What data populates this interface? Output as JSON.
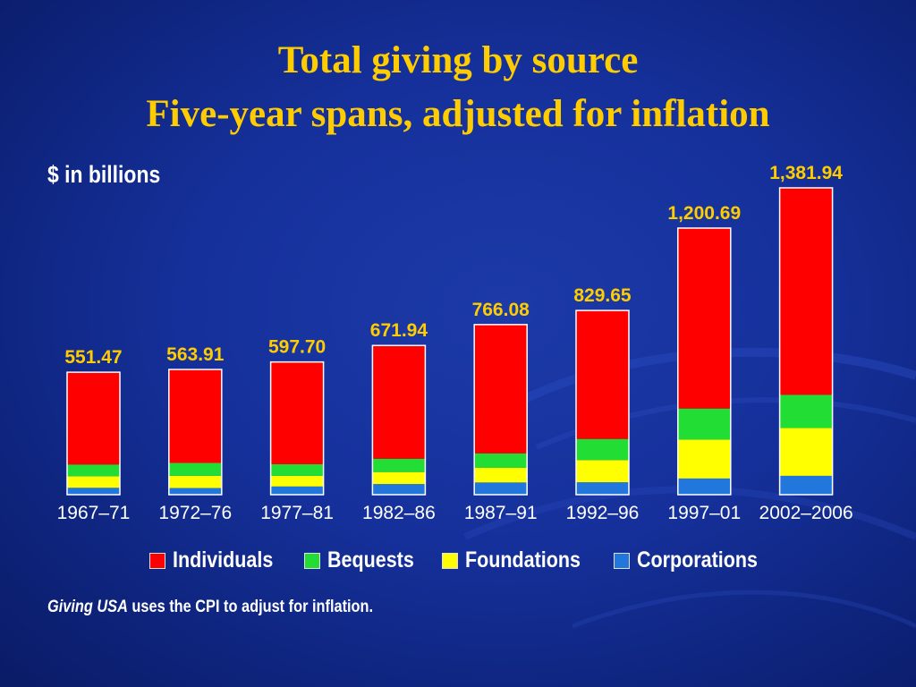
{
  "title": {
    "line1": "Total giving by source",
    "line2": "Five-year spans, adjusted for inflation"
  },
  "unit_label": "$ in billions",
  "footnote": {
    "source_italic": "Giving USA",
    "text": " uses the CPI to adjust for inflation."
  },
  "colors": {
    "background": "#15309a",
    "title": "#ffcc00",
    "total_label": "#ffcc00",
    "Individuals": "#ff0000",
    "Bequests": "#22dd33",
    "Foundations": "#ffff00",
    "Corporations": "#2277dd"
  },
  "chart_data": {
    "type": "bar",
    "stacked": true,
    "categories": [
      "1967–71",
      "1972–76",
      "1977–81",
      "1982–86",
      "1987–91",
      "1992–96",
      "1997–01",
      "2002–2006"
    ],
    "totals": [
      "551.47",
      "563.91",
      "597.70",
      "671.94",
      "766.08",
      "829.65",
      "1,200.69",
      "1,381.94"
    ],
    "series": [
      {
        "name": "Corporations",
        "values": [
          31,
          30,
          37,
          48,
          55,
          56,
          73,
          85
        ]
      },
      {
        "name": "Foundations",
        "values": [
          52,
          55,
          48,
          54,
          66,
          100,
          175,
          215
        ]
      },
      {
        "name": "Bequests",
        "values": [
          53,
          58,
          52,
          60,
          65,
          95,
          140,
          150
        ]
      },
      {
        "name": "Individuals",
        "values": [
          415.47,
          420.91,
          460.7,
          509.94,
          580.08,
          578.65,
          812.69,
          931.94
        ]
      }
    ],
    "legend": [
      "Individuals",
      "Bequests",
      "Foundations",
      "Corporations"
    ],
    "legend_position": "bottom",
    "ylim": [
      0,
      1381.94
    ],
    "grid": false
  }
}
